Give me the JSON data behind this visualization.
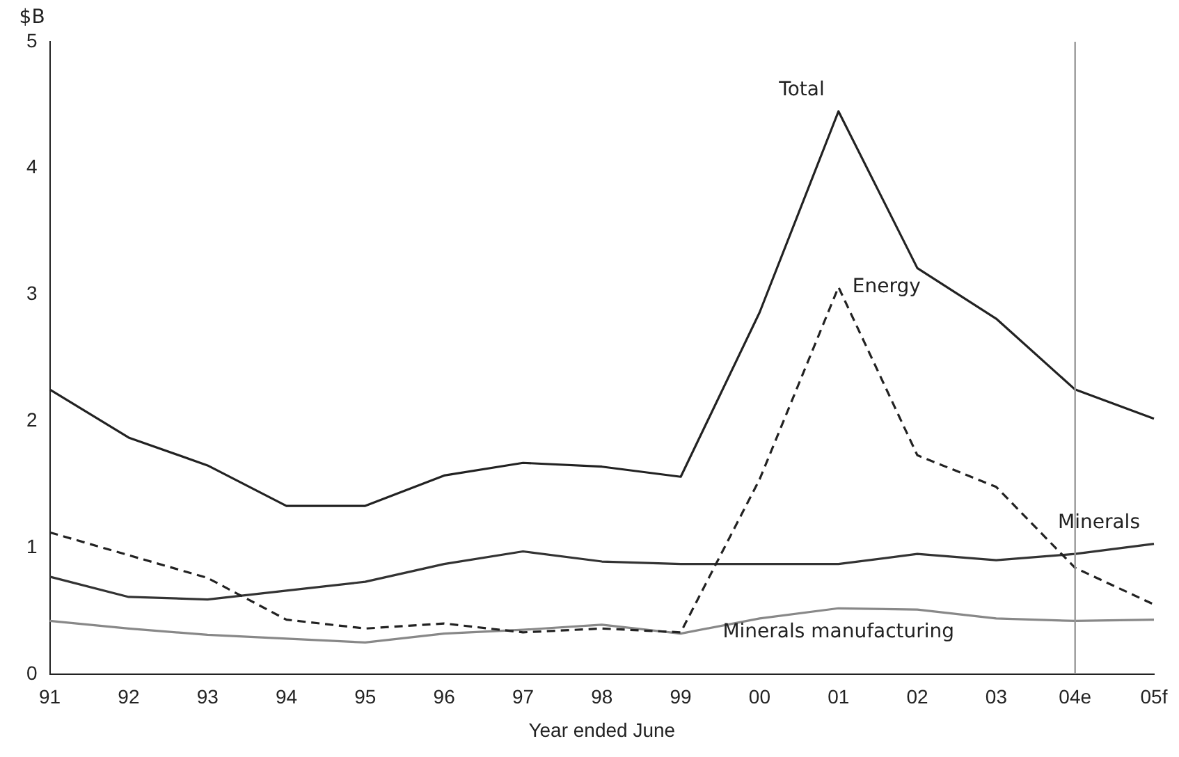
{
  "chart_data": {
    "type": "line",
    "ylabel": "$B",
    "xlabel": "Year ended June",
    "categories": [
      "91",
      "92",
      "93",
      "94",
      "95",
      "96",
      "97",
      "98",
      "99",
      "00",
      "01",
      "02",
      "03",
      "04e",
      "05f"
    ],
    "series": [
      {
        "name": "Total",
        "color": "#222222",
        "line_style": "solid",
        "values": [
          2.25,
          1.87,
          1.65,
          1.33,
          1.33,
          1.57,
          1.67,
          1.64,
          1.56,
          2.86,
          4.45,
          3.21,
          2.81,
          2.25,
          2.02
        ]
      },
      {
        "name": "Energy",
        "color": "#222222",
        "line_style": "dashed",
        "values": [
          1.12,
          0.94,
          0.76,
          0.43,
          0.36,
          0.4,
          0.33,
          0.36,
          0.33,
          1.54,
          3.06,
          1.73,
          1.48,
          0.84,
          0.55
        ]
      },
      {
        "name": "Minerals",
        "color": "#333333",
        "line_style": "solid",
        "values": [
          0.77,
          0.61,
          0.59,
          0.66,
          0.73,
          0.87,
          0.97,
          0.89,
          0.87,
          0.87,
          0.87,
          0.95,
          0.9,
          0.95,
          1.03
        ]
      },
      {
        "name": "Minerals manufacturing",
        "color": "#888888",
        "line_style": "solid",
        "values": [
          0.42,
          0.36,
          0.31,
          0.28,
          0.25,
          0.32,
          0.35,
          0.39,
          0.32,
          0.44,
          0.52,
          0.51,
          0.44,
          0.42,
          0.43
        ]
      }
    ],
    "ylim": [
      0,
      5
    ],
    "yticks": [
      0,
      1,
      2,
      3,
      4,
      5
    ],
    "grid": false,
    "legend": false,
    "marker": "none",
    "ref_lines": [
      {
        "axis": "x",
        "value": "04e",
        "color": "#999999"
      }
    ]
  }
}
